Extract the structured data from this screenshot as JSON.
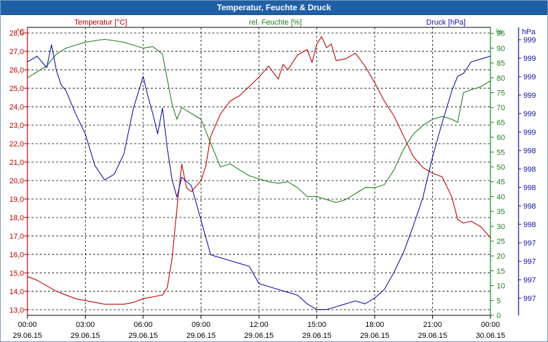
{
  "window": {
    "title": "Temperatur, Feuchte & Druck"
  },
  "chart_data": {
    "type": "line",
    "title": "Temperatur, Feuchte & Druck",
    "x_ticks": [
      {
        "time": "00:00",
        "date": "29.06.15"
      },
      {
        "time": "03:00",
        "date": "29.06.15"
      },
      {
        "time": "06:00",
        "date": "29.06.15"
      },
      {
        "time": "09:00",
        "date": "29.06.15"
      },
      {
        "time": "12:00",
        "date": "29.06.15"
      },
      {
        "time": "15:00",
        "date": "29.06.15"
      },
      {
        "time": "18:00",
        "date": "29.06.15"
      },
      {
        "time": "21:00",
        "date": "29.06.15"
      },
      {
        "time": "00:00",
        "date": "30.06.15"
      }
    ],
    "xlim_hours": [
      0,
      24
    ],
    "axes": {
      "temperature": {
        "unit_label": "°C",
        "legend": "Temperatur [°C]",
        "color": "#c00000",
        "ylim": [
          12.7,
          28.3
        ],
        "ticks": [
          "28,0",
          "27,0",
          "26,0",
          "25,0",
          "24,0",
          "23,0",
          "22,0",
          "21,0",
          "20,0",
          "19,0",
          "18,0",
          "17,0",
          "16,0",
          "15,0",
          "14,0",
          "13,0"
        ]
      },
      "humidity": {
        "unit_label": "%",
        "legend": "rel. Feuchte [%]",
        "color": "#208020",
        "ylim": [
          0,
          97
        ],
        "ticks": [
          "95",
          "90",
          "85",
          "80",
          "75",
          "70",
          "65",
          "60",
          "55",
          "50",
          "45",
          "40",
          "35",
          "30",
          "25",
          "20",
          "15",
          "10",
          "5",
          "0"
        ]
      },
      "pressure": {
        "unit_label": "hPa",
        "legend": "Druck [hPa]",
        "color": "#1010a0",
        "ticks": [
          "999",
          "999",
          "999",
          "999",
          "999",
          "999",
          "998",
          "998",
          "998",
          "998",
          "998",
          "997",
          "997",
          "997",
          "997",
          "997"
        ]
      }
    },
    "grid": true,
    "series": [
      {
        "name": "Temperatur [°C]",
        "axis": "temperature",
        "color": "#c00000",
        "x": [
          0,
          0.5,
          1,
          1.5,
          2,
          2.5,
          3,
          3.5,
          4,
          4.5,
          5,
          5.5,
          6,
          6.5,
          7,
          7.25,
          7.5,
          7.75,
          8,
          8.25,
          8.5,
          9,
          9.25,
          9.5,
          10,
          10.5,
          11,
          11.5,
          12,
          12.5,
          13,
          13.25,
          13.5,
          14,
          14.5,
          14.75,
          15,
          15.25,
          15.5,
          15.75,
          16,
          16.5,
          17,
          17.5,
          18,
          18.5,
          19,
          19.5,
          20,
          20.5,
          21,
          21.5,
          22,
          22.3,
          22.6,
          23,
          23.5,
          24
        ],
        "y": [
          14.8,
          14.6,
          14.3,
          14.0,
          13.8,
          13.6,
          13.5,
          13.4,
          13.3,
          13.3,
          13.3,
          13.4,
          13.6,
          13.7,
          13.8,
          14.2,
          15.8,
          18.5,
          20.9,
          19.6,
          19.4,
          20.0,
          20.8,
          22.4,
          23.6,
          24.3,
          24.6,
          25.1,
          25.6,
          26.2,
          25.5,
          26.3,
          26.0,
          26.8,
          27.1,
          26.4,
          27.4,
          27.8,
          27.2,
          27.4,
          26.5,
          26.6,
          26.9,
          26.2,
          25.3,
          24.3,
          23.5,
          22.4,
          21.3,
          20.7,
          20.4,
          20.2,
          19.1,
          17.9,
          17.7,
          17.8,
          17.5,
          16.9
        ]
      },
      {
        "name": "rel. Feuchte [%]",
        "axis": "humidity",
        "color": "#208020",
        "x": [
          0,
          0.5,
          1,
          1.5,
          2,
          2.5,
          3,
          3.5,
          4,
          4.5,
          5,
          5.5,
          6,
          6.5,
          7,
          7.5,
          7.75,
          8,
          8.5,
          9,
          9.5,
          10,
          10.5,
          11,
          11.5,
          12,
          12.5,
          13,
          13.5,
          14,
          14.5,
          15,
          15.5,
          16,
          16.5,
          17,
          17.5,
          18,
          18.5,
          19,
          19.5,
          20,
          20.5,
          21,
          21.5,
          22,
          22.3,
          22.6,
          23,
          23.5,
          24
        ],
        "y": [
          80,
          82,
          84,
          88,
          90,
          91,
          92,
          92.5,
          93,
          92.5,
          92,
          91,
          90,
          90.5,
          88,
          71,
          66,
          70,
          68,
          66,
          58,
          50,
          51,
          49,
          47,
          46,
          45,
          44.5,
          45,
          43,
          40,
          40,
          39,
          38,
          39,
          41,
          43,
          43,
          44,
          49,
          56,
          61,
          64,
          66,
          67,
          66,
          65,
          75,
          76,
          77,
          79
        ]
      },
      {
        "name": "Druck [hPa]",
        "axis": "pressure",
        "color": "#1010a0",
        "x": [
          0,
          0.5,
          1,
          1.25,
          1.5,
          1.75,
          2,
          2.5,
          3,
          3.5,
          4,
          4.5,
          5,
          5.5,
          6,
          6.25,
          6.5,
          6.75,
          7,
          7.25,
          7.5,
          7.75,
          8,
          8.5,
          9,
          9.5,
          10,
          10.5,
          11,
          11.5,
          12,
          12.5,
          13,
          13.5,
          14,
          14.5,
          15,
          15.5,
          16,
          16.5,
          17,
          17.5,
          18,
          18.5,
          19,
          19.5,
          20,
          20.5,
          21,
          21.5,
          22,
          22.3,
          22.6,
          23,
          23.5,
          24
        ],
        "y": [
          88,
          90,
          86,
          94,
          85,
          80,
          78,
          70,
          63,
          52,
          47,
          49,
          56,
          72,
          83,
          76,
          70,
          63,
          72,
          58,
          47,
          41,
          48,
          45,
          33,
          21,
          20,
          19,
          18,
          17,
          11,
          10,
          9,
          8,
          7,
          4,
          2,
          2,
          3,
          4,
          5,
          4,
          6,
          9,
          15,
          22,
          31,
          41,
          55,
          67,
          78,
          83,
          84,
          88,
          89,
          90
        ]
      }
    ]
  }
}
